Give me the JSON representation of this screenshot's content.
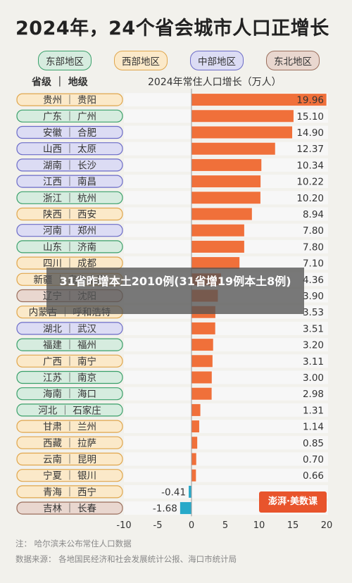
{
  "title": "2024年，24个省会城市人口正增长",
  "legend": [
    {
      "label": "东部地区",
      "color": "#d6ecdf",
      "border": "#3aa06a"
    },
    {
      "label": "西部地区",
      "color": "#fbe9c9",
      "border": "#e0a64c"
    },
    {
      "label": "中部地区",
      "color": "#dcdcf4",
      "border": "#6b6bc7"
    },
    {
      "label": "东北地区",
      "color": "#e9d7cf",
      "border": "#9a6e5c"
    }
  ],
  "header_left": "省级 ｜ 地级",
  "header_right": "2024年常住人口增长（万人）",
  "overlay_text": "31省昨增本土2010例(31省增19例本土8例)",
  "logo_text": "澎湃·美数课",
  "notes": {
    "note": "注：  哈尔滨未公布常住人口数据",
    "source": "数据来源：  各地国民经济和社会发展统计公报、海口市统计局"
  },
  "colors": {
    "positive": "#f0703a",
    "negative": "#27a9c9",
    "row_bg": "#f7f7f7"
  },
  "chart_data": {
    "type": "bar",
    "orientation": "horizontal",
    "title": "2024年，24个省会城市人口正增长",
    "xlabel": "2024年常住人口增长（万人）",
    "xlim": [
      -10,
      20
    ],
    "xticks": [
      -10,
      -5,
      0,
      5,
      10,
      15,
      20
    ],
    "categories": [
      {
        "label": "贵州 ｜ 贵阳",
        "region": "西部地区",
        "value": 19.96
      },
      {
        "label": "广东 ｜ 广州",
        "region": "东部地区",
        "value": 15.1
      },
      {
        "label": "安徽 ｜ 合肥",
        "region": "中部地区",
        "value": 14.9
      },
      {
        "label": "山西 ｜ 太原",
        "region": "中部地区",
        "value": 12.37
      },
      {
        "label": "湖南 ｜ 长沙",
        "region": "中部地区",
        "value": 10.34
      },
      {
        "label": "江西 ｜ 南昌",
        "region": "中部地区",
        "value": 10.22
      },
      {
        "label": "浙江 ｜ 杭州",
        "region": "东部地区",
        "value": 10.2
      },
      {
        "label": "陕西 ｜ 西安",
        "region": "西部地区",
        "value": 8.94
      },
      {
        "label": "河南 ｜ 郑州",
        "region": "中部地区",
        "value": 7.8
      },
      {
        "label": "山东 ｜ 济南",
        "region": "东部地区",
        "value": 7.8
      },
      {
        "label": "四川 ｜ 成都",
        "region": "西部地区",
        "value": 7.1
      },
      {
        "label": "新疆 ｜ 乌鲁木齐",
        "region": "西部地区",
        "value": 4.36
      },
      {
        "label": "辽宁 ｜ 沈阳",
        "region": "东北地区",
        "value": 3.9
      },
      {
        "label": "内蒙古 ｜ 呼和浩特",
        "region": "西部地区",
        "value": 3.53
      },
      {
        "label": "湖北 ｜ 武汉",
        "region": "中部地区",
        "value": 3.51
      },
      {
        "label": "福建 ｜ 福州",
        "region": "东部地区",
        "value": 3.2
      },
      {
        "label": "广西 ｜ 南宁",
        "region": "西部地区",
        "value": 3.11
      },
      {
        "label": "江苏 ｜ 南京",
        "region": "东部地区",
        "value": 3.0
      },
      {
        "label": "海南 ｜ 海口",
        "region": "东部地区",
        "value": 2.98
      },
      {
        "label": "河北 ｜ 石家庄",
        "region": "东部地区",
        "value": 1.31
      },
      {
        "label": "甘肃 ｜ 兰州",
        "region": "西部地区",
        "value": 1.14
      },
      {
        "label": "西藏 ｜ 拉萨",
        "region": "西部地区",
        "value": 0.85
      },
      {
        "label": "云南 ｜ 昆明",
        "region": "西部地区",
        "value": 0.7
      },
      {
        "label": "宁夏 ｜ 银川",
        "region": "西部地区",
        "value": 0.66
      },
      {
        "label": "青海 ｜ 西宁",
        "region": "西部地区",
        "value": -0.41
      },
      {
        "label": "吉林 ｜ 长春",
        "region": "东北地区",
        "value": -1.68
      }
    ],
    "value_labels": [
      "19.96",
      "15.10",
      "14.90",
      "12.37",
      "10.34",
      "10.22",
      "10.20",
      "8.94",
      "7.80",
      "7.80",
      "7.10",
      "4.36",
      "3.90",
      "3.53",
      "3.51",
      "3.20",
      "3.11",
      "3.00",
      "2.98",
      "1.31",
      "1.14",
      "0.85",
      "0.70",
      "0.66",
      "-0.41",
      "-1.68"
    ]
  }
}
